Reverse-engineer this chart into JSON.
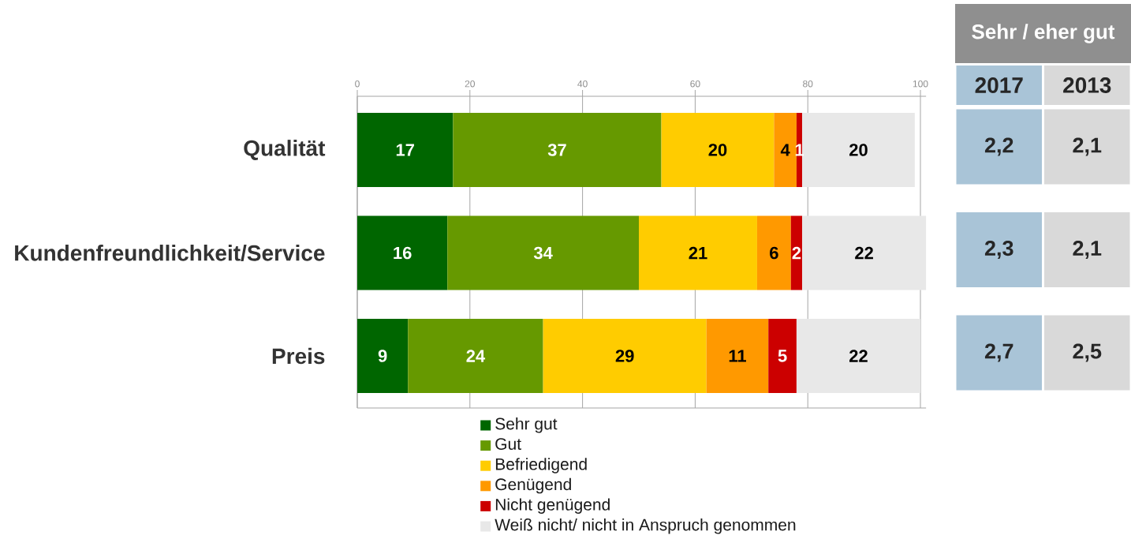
{
  "chart_data": [
    {
      "type": "bar",
      "orientation": "horizontal",
      "stacked": true,
      "categories": [
        "Qualität",
        "Kundenfreundlichkeit/Service",
        "Preis"
      ],
      "series": [
        {
          "name": "Sehr gut",
          "color": "#006600",
          "values": [
            17,
            16,
            9
          ]
        },
        {
          "name": "Gut",
          "color": "#669900",
          "values": [
            37,
            34,
            24
          ]
        },
        {
          "name": "Befriedigend",
          "color": "#ffcc00",
          "values": [
            20,
            21,
            29
          ]
        },
        {
          "name": "Genügend",
          "color": "#ff9900",
          "values": [
            4,
            6,
            11
          ]
        },
        {
          "name": "Nicht genügend",
          "color": "#cc0000",
          "values": [
            1,
            2,
            5
          ]
        },
        {
          "name": "Weiß nicht/ nicht in Anspruch genommen",
          "color": "#e8e8e8",
          "values": [
            20,
            22,
            22
          ]
        }
      ],
      "xlim": [
        0,
        101
      ],
      "xticks": [
        0,
        20,
        40,
        60,
        80,
        100
      ],
      "grid": "x",
      "legend": "bottom",
      "data_labels": true
    },
    {
      "type": "other",
      "title": "Sehr / eher gut",
      "categories": [
        "2017",
        "2013"
      ],
      "colors": [
        "#a9c4d7",
        "#d9d9d9"
      ],
      "annotations": [
        "2,2",
        "2,1",
        "2,3",
        "2,1",
        "2,7",
        "2,5"
      ]
    }
  ]
}
